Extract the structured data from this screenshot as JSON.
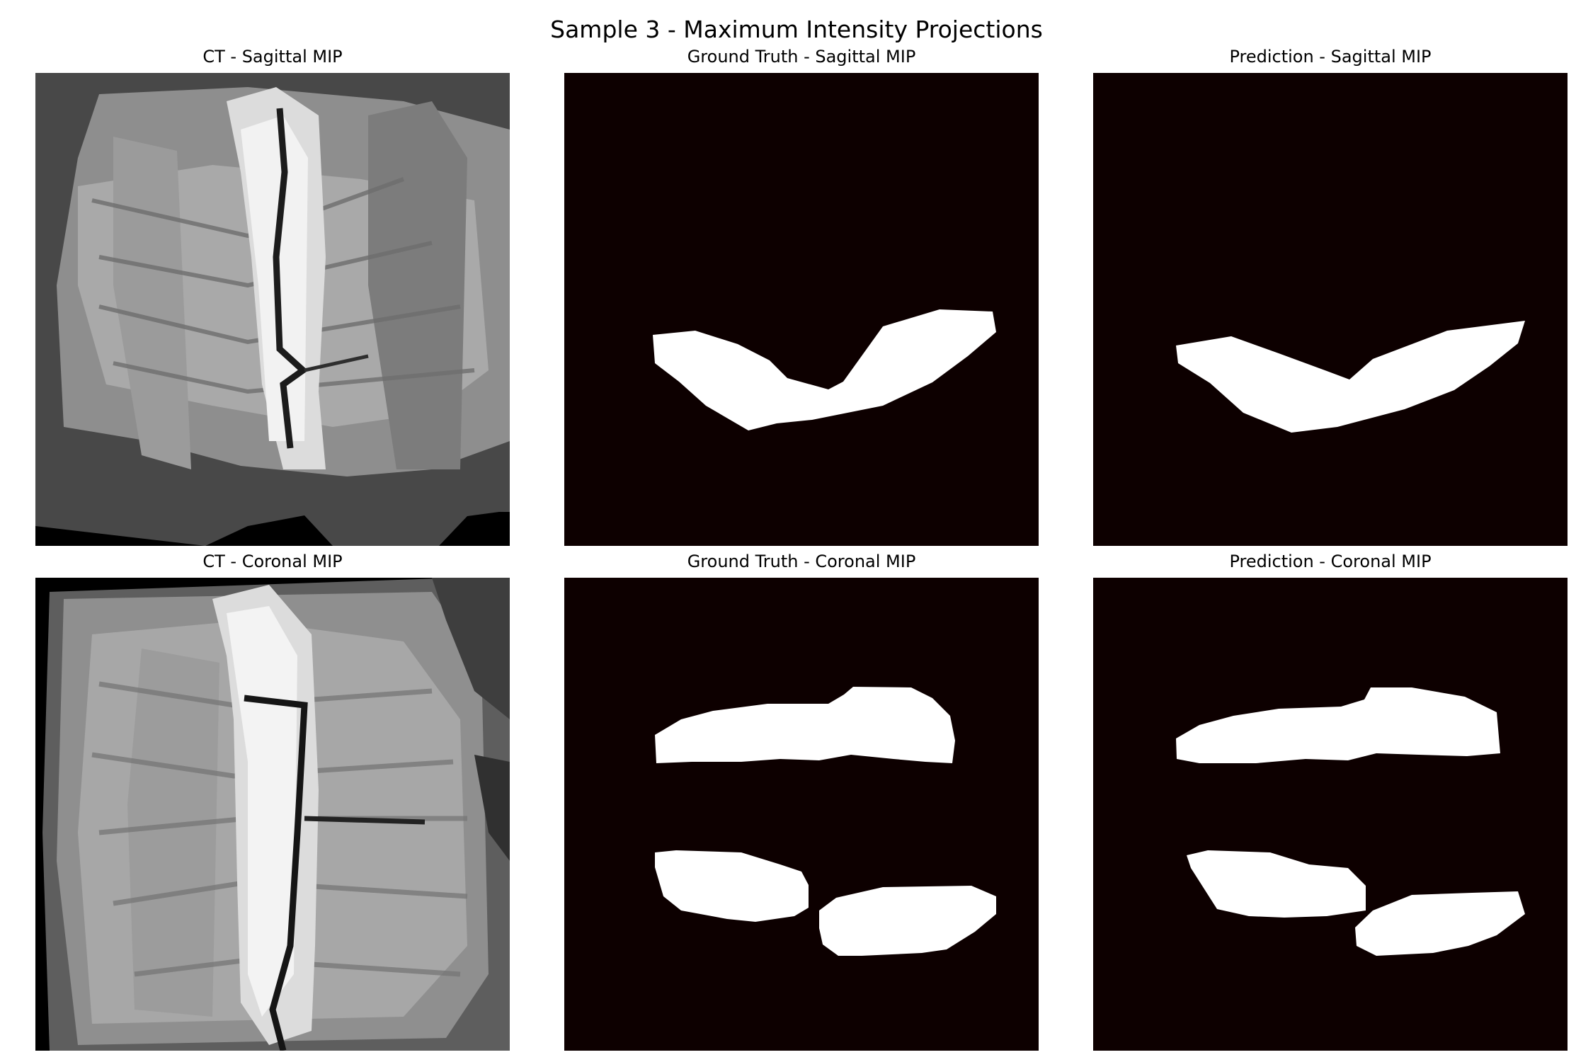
{
  "figure": {
    "title": "Sample 3 - Maximum Intensity Projections"
  },
  "panels": [
    {
      "title": "CT - Sagittal MIP",
      "kind": "ct",
      "view": "sagittal"
    },
    {
      "title": "Ground Truth - Sagittal MIP",
      "kind": "mask",
      "view": "sagittal"
    },
    {
      "title": "Prediction - Sagittal MIP",
      "kind": "mask",
      "view": "sagittal"
    },
    {
      "title": "CT - Coronal MIP",
      "kind": "ct",
      "view": "coronal"
    },
    {
      "title": "Ground Truth - Coronal MIP",
      "kind": "mask",
      "view": "coronal"
    },
    {
      "title": "Prediction - Coronal MIP",
      "kind": "mask",
      "view": "coronal"
    }
  ],
  "colors": {
    "mask_background": "#0d0000",
    "mask_foreground": "#ffffff",
    "ct_background": "#000000"
  }
}
